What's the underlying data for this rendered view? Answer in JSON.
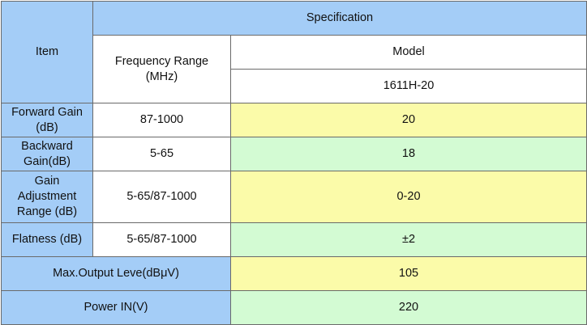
{
  "header": {
    "item_label": "Item",
    "specification_label": "Specification",
    "frequency_range_label": "Frequency Range\n(MHz)",
    "model_label": "Model",
    "model_value": "1611H-20"
  },
  "rows": [
    {
      "item": "Forward Gain\n(dB)",
      "frequency": "87-1000",
      "value": "20"
    },
    {
      "item": "Backward\nGain(dB)",
      "frequency": "5-65",
      "value": "18"
    },
    {
      "item": "Gain\nAdjustment\nRange (dB)",
      "frequency": "5-65/87-1000",
      "value": "0-20"
    },
    {
      "item": "Flatness (dB)",
      "frequency": "5-65/87-1000",
      "value": "±2"
    }
  ],
  "wide_rows": [
    {
      "item": "Max.Output Leve(dBμV)",
      "value": "105"
    },
    {
      "item": "Power IN(V)",
      "value": "220"
    }
  ],
  "colors": {
    "header_blue": "#a4cdf7",
    "value_yellow": "#fbfba9",
    "value_green": "#d3fbd3"
  }
}
